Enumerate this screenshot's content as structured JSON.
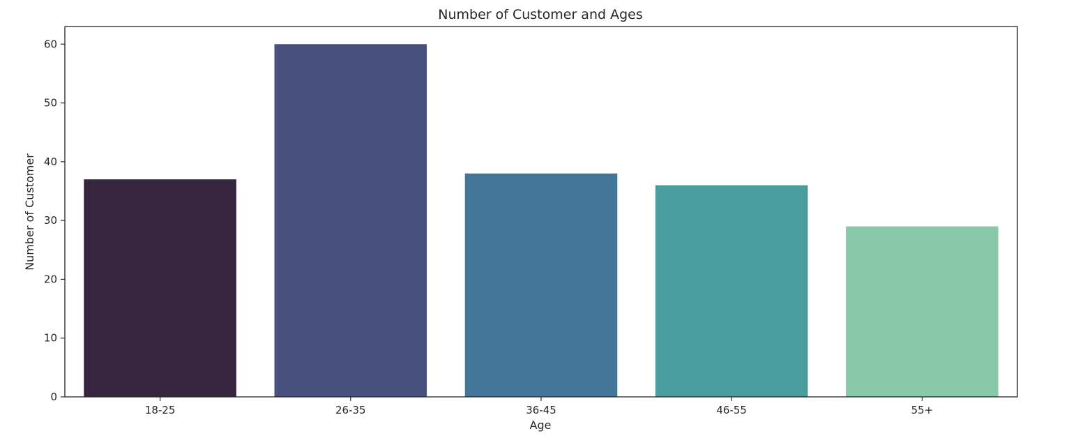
{
  "chart_data": {
    "type": "bar",
    "title": "Number of Customer and Ages",
    "xlabel": "Age",
    "ylabel": "Number of Customer",
    "categories": [
      "18-25",
      "26-35",
      "36-45",
      "46-55",
      "55+"
    ],
    "values": [
      37,
      60,
      38,
      36,
      29
    ],
    "colors": [
      "#35253f",
      "#48507f",
      "#44769a",
      "#4a9d9d",
      "#87c8a9"
    ],
    "ylim": [
      0,
      63
    ],
    "yticks": [
      0,
      10,
      20,
      30,
      40,
      50,
      60
    ],
    "grid": false,
    "legend": "none"
  }
}
